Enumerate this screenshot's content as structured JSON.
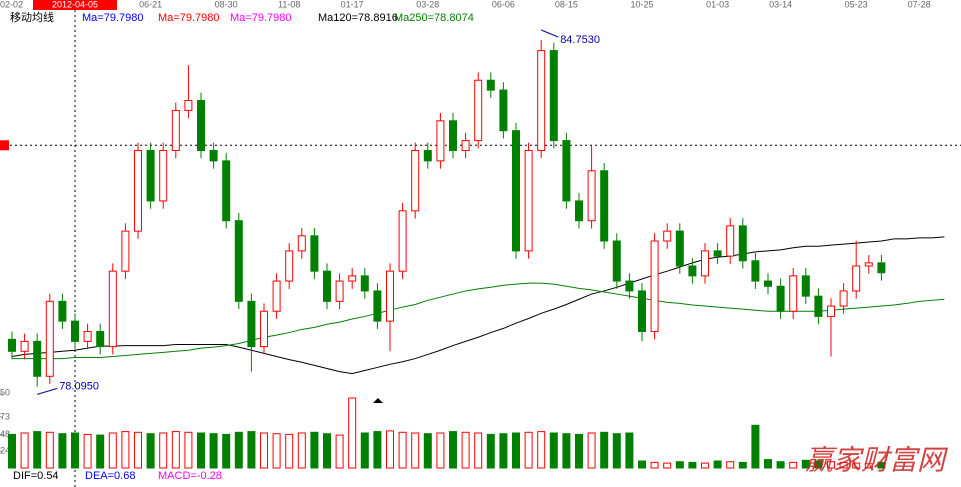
{
  "chart_data": {
    "type": "candlestick",
    "title": "移动均线",
    "legend": [
      {
        "name": "Ma=79.7980",
        "color": "#0000ff"
      },
      {
        "name": "Ma=79.7980",
        "color": "#ff0000"
      },
      {
        "name": "Ma=79.7980",
        "color": "#ff00ff"
      }
    ],
    "categories": [
      "02-02",
      null,
      null,
      null,
      null,
      "2012-04-05",
      null,
      null,
      null,
      null,
      null,
      "06-21",
      null,
      null,
      null,
      null,
      null,
      "08-30",
      null,
      null,
      null,
      null,
      "11-08",
      null,
      null,
      null,
      null,
      "01-17",
      null,
      null,
      null,
      null,
      null,
      "03-28",
      null,
      null,
      null,
      null,
      null,
      "06-06",
      null,
      null,
      null,
      null,
      "08-15",
      null,
      null,
      null,
      null,
      null,
      "10-25",
      null,
      null,
      null,
      null,
      null,
      "01-03",
      null,
      null,
      null,
      null,
      "03-14",
      null,
      null,
      null,
      null,
      null,
      "05-23",
      null,
      null,
      null,
      null,
      "07-28",
      null,
      null
    ],
    "open": [
      79.0,
      78.77,
      78.96,
      78.29,
      79.73,
      79.35,
      78.96,
      79.15,
      78.86,
      80.31,
      81.08,
      82.63,
      81.66,
      82.63,
      83.4,
      83.59,
      82.63,
      82.43,
      81.28,
      79.73,
      78.86,
      79.54,
      80.12,
      80.7,
      80.99,
      80.31,
      79.73,
      80.12,
      80.22,
      79.93,
      79.35,
      80.31,
      81.47,
      82.63,
      82.43,
      83.2,
      82.63,
      82.82,
      83.98,
      83.79,
      83.01,
      80.7,
      82.63,
      84.55,
      82.82,
      81.66,
      81.28,
      82.24,
      80.89,
      80.12,
      79.93,
      79.15,
      80.89,
      81.08,
      80.41,
      80.22,
      80.7,
      80.6,
      81.18,
      80.51,
      80.12,
      80.02,
      79.54,
      80.22,
      79.83,
      79.44,
      79.64,
      79.93,
      80.41,
      80.47,
      null,
      null,
      null,
      null,
      null
    ],
    "high": [
      79.15,
      79.11,
      79.11,
      79.88,
      79.88,
      79.5,
      79.3,
      79.3,
      80.46,
      81.23,
      82.78,
      82.78,
      82.78,
      83.55,
      84.27,
      83.74,
      82.78,
      82.58,
      81.43,
      79.88,
      79.69,
      80.27,
      80.85,
      81.14,
      81.14,
      80.46,
      80.27,
      80.37,
      80.37,
      80.08,
      80.46,
      81.62,
      82.78,
      82.78,
      83.35,
      83.35,
      82.97,
      84.13,
      84.13,
      83.94,
      83.16,
      82.78,
      84.753,
      84.7,
      82.97,
      81.81,
      82.72,
      82.39,
      81.04,
      80.27,
      80.08,
      81.04,
      81.23,
      81.23,
      80.56,
      80.85,
      80.85,
      81.33,
      81.33,
      80.66,
      80.27,
      80.17,
      80.37,
      80.37,
      79.98,
      79.79,
      80.08,
      80.89,
      80.62,
      80.62,
      null,
      null,
      null,
      null,
      null
    ],
    "low": [
      78.62,
      78.62,
      78.095,
      78.14,
      79.2,
      78.81,
      78.81,
      78.71,
      78.71,
      80.16,
      80.93,
      81.51,
      81.51,
      82.48,
      83.25,
      82.48,
      82.28,
      81.13,
      79.58,
      78.38,
      78.71,
      79.39,
      79.97,
      80.55,
      80.16,
      79.58,
      79.58,
      79.97,
      79.78,
      79.2,
      78.77,
      80.16,
      81.32,
      82.28,
      82.28,
      82.48,
      82.48,
      82.67,
      83.64,
      82.86,
      80.55,
      80.55,
      82.48,
      82.67,
      81.51,
      81.13,
      81.13,
      80.74,
      79.97,
      79.78,
      78.96,
      79.0,
      80.74,
      80.26,
      80.07,
      80.07,
      80.45,
      80.45,
      80.36,
      79.97,
      79.87,
      79.39,
      79.39,
      79.68,
      79.29,
      78.67,
      79.49,
      79.78,
      80.26,
      80.13,
      null,
      null,
      null,
      null,
      null
    ],
    "close": [
      78.77,
      78.96,
      78.29,
      79.73,
      79.35,
      78.96,
      79.15,
      78.86,
      80.31,
      81.08,
      82.63,
      81.66,
      82.63,
      83.4,
      83.59,
      82.63,
      82.43,
      81.28,
      79.73,
      78.86,
      79.54,
      80.12,
      80.7,
      80.99,
      80.31,
      79.73,
      80.12,
      80.22,
      79.93,
      79.35,
      80.31,
      81.47,
      82.63,
      82.43,
      83.2,
      82.63,
      82.82,
      83.98,
      83.79,
      83.01,
      80.7,
      82.63,
      84.55,
      82.82,
      81.66,
      81.28,
      82.24,
      80.89,
      80.12,
      79.93,
      79.15,
      80.89,
      81.08,
      80.41,
      80.22,
      80.7,
      80.6,
      81.18,
      80.51,
      80.12,
      80.02,
      79.54,
      80.22,
      79.83,
      79.44,
      79.64,
      79.93,
      80.41,
      80.47,
      80.28,
      null,
      null,
      null,
      null,
      null
    ],
    "up_color": "#ff0000",
    "down_color": "#008000",
    "series": [
      {
        "name": "Ma120=78.8916",
        "color": "#000000",
        "values": [
          78.67,
          78.71,
          78.73,
          78.75,
          78.77,
          78.79,
          78.83,
          78.87,
          78.87,
          78.88,
          78.88,
          78.88,
          78.88,
          78.9,
          78.9,
          78.9,
          78.9,
          78.9,
          78.85,
          78.79,
          78.73,
          78.67,
          78.61,
          78.56,
          78.5,
          78.44,
          78.38,
          78.34,
          78.4,
          78.46,
          78.52,
          78.57,
          78.63,
          78.71,
          78.79,
          78.88,
          78.96,
          79.04,
          79.13,
          79.21,
          79.31,
          79.4,
          79.5,
          79.58,
          79.67,
          79.77,
          79.87,
          79.93,
          80.0,
          80.08,
          80.16,
          80.24,
          80.31,
          80.39,
          80.47,
          80.54,
          80.58,
          80.6,
          80.64,
          80.68,
          80.7,
          80.72,
          80.76,
          80.79,
          80.79,
          80.81,
          80.83,
          80.85,
          80.87,
          80.89,
          80.93,
          80.93,
          80.95,
          80.95,
          80.97
        ]
      },
      {
        "name": "Ma250=78.8074",
        "color": "#008000",
        "values": [
          78.63,
          78.63,
          78.63,
          78.63,
          78.63,
          78.65,
          78.65,
          78.65,
          78.67,
          78.69,
          78.71,
          78.73,
          78.75,
          78.77,
          78.79,
          78.83,
          78.85,
          78.88,
          78.92,
          78.98,
          79.04,
          79.08,
          79.13,
          79.19,
          79.23,
          79.29,
          79.33,
          79.39,
          79.44,
          79.5,
          79.56,
          79.62,
          79.67,
          79.75,
          79.81,
          79.87,
          79.93,
          79.97,
          80.0,
          80.04,
          80.06,
          80.08,
          80.08,
          80.06,
          80.02,
          79.98,
          79.95,
          79.91,
          79.87,
          79.83,
          79.79,
          79.75,
          79.71,
          79.69,
          79.66,
          79.64,
          79.62,
          79.6,
          79.58,
          79.56,
          79.54,
          79.54,
          79.54,
          79.54,
          79.54,
          79.56,
          79.58,
          79.6,
          79.62,
          79.64,
          79.66,
          79.69,
          79.73,
          79.75,
          79.77
        ]
      }
    ],
    "ylim": [
      77.93,
      85.33
    ],
    "yticks": [
      {
        "value": 77.95,
        "label": "50"
      }
    ],
    "high_label": {
      "value": 84.753,
      "label": "84.7530"
    },
    "low_label": {
      "value": 78.095,
      "label": "78.0950"
    },
    "crosshair": {
      "x": "2012-04-05",
      "y": 82.73
    },
    "volume": {
      "values": [
        48,
        50,
        52,
        51,
        49,
        50,
        48,
        47,
        50,
        52,
        51,
        49,
        50,
        52,
        51,
        50,
        49,
        48,
        51,
        52,
        50,
        49,
        48,
        50,
        51,
        49,
        47,
        100,
        50,
        52,
        53,
        51,
        50,
        49,
        50,
        52,
        51,
        50,
        48,
        49,
        50,
        51,
        52,
        50,
        49,
        48,
        50,
        51,
        49,
        50,
        10,
        8,
        7,
        9,
        8,
        7,
        10,
        9,
        8,
        61,
        12,
        9,
        8,
        11,
        10,
        9,
        8,
        7,
        6,
        8,
        null,
        null,
        null,
        null,
        null
      ],
      "ylim": [
        0,
        100
      ],
      "yticks": [
        24,
        48,
        73
      ]
    },
    "indicators": [
      {
        "name": "DIF=0.54",
        "color": "#000000"
      },
      {
        "name": "DEA=0.68",
        "color": "#0000ff"
      },
      {
        "name": "MACD=-0.28",
        "color": "#ff00ff"
      }
    ],
    "watermark": "赢家财富网"
  }
}
